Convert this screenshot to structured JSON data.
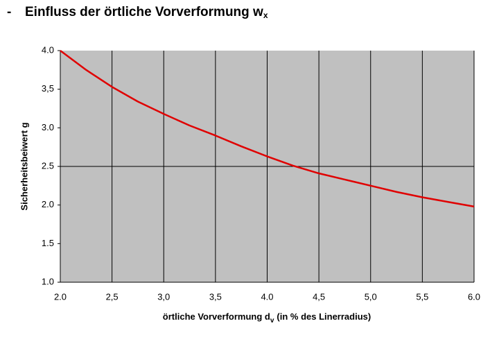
{
  "chart_data": {
    "type": "line",
    "title_marker": "-",
    "title": "Einfluss der örtliche Vorverformung w",
    "title_subscript": "x",
    "xlabel": "örtliche Vorverformung d",
    "xlabel_subscript": "v",
    "xlabel_suffix": "(in % des Linerradius)",
    "ylabel": "Sicherheitsbeiwert g",
    "x": [
      2.0,
      2.25,
      2.5,
      2.75,
      3.0,
      3.25,
      3.5,
      3.75,
      4.0,
      4.25,
      4.5,
      4.75,
      5.0,
      5.25,
      5.5,
      5.75,
      6.0
    ],
    "series": [
      {
        "color": "#e00000",
        "values": [
          4.0,
          3.75,
          3.53,
          3.34,
          3.18,
          3.03,
          2.9,
          2.76,
          2.63,
          2.51,
          2.41,
          2.33,
          2.25,
          2.17,
          2.1,
          2.04,
          1.98
        ]
      }
    ],
    "xlim": [
      2,
      6
    ],
    "ylim": [
      1,
      4
    ],
    "xticks": [
      {
        "value": 2,
        "label": "2.0"
      },
      {
        "value": 2.5,
        "label": "2,5"
      },
      {
        "value": 3,
        "label": "3,0"
      },
      {
        "value": 3.5,
        "label": "3,5"
      },
      {
        "value": 4,
        "label": "4.0"
      },
      {
        "value": 4.5,
        "label": "4,5"
      },
      {
        "value": 5,
        "label": "5,0"
      },
      {
        "value": 5.5,
        "label": "5,5"
      },
      {
        "value": 6,
        "label": "6.0"
      }
    ],
    "yticks": [
      {
        "value": 1,
        "label": "1.0"
      },
      {
        "value": 1.5,
        "label": "1.5"
      },
      {
        "value": 2,
        "label": "2.0"
      },
      {
        "value": 2.5,
        "label": "2.5"
      },
      {
        "value": 3,
        "label": "3.0"
      },
      {
        "value": 3.5,
        "label": "3,5"
      },
      {
        "value": 4,
        "label": "4.0"
      }
    ],
    "ygrid_lines": [
      2.5
    ],
    "plot_background": "#c0c0c0"
  }
}
